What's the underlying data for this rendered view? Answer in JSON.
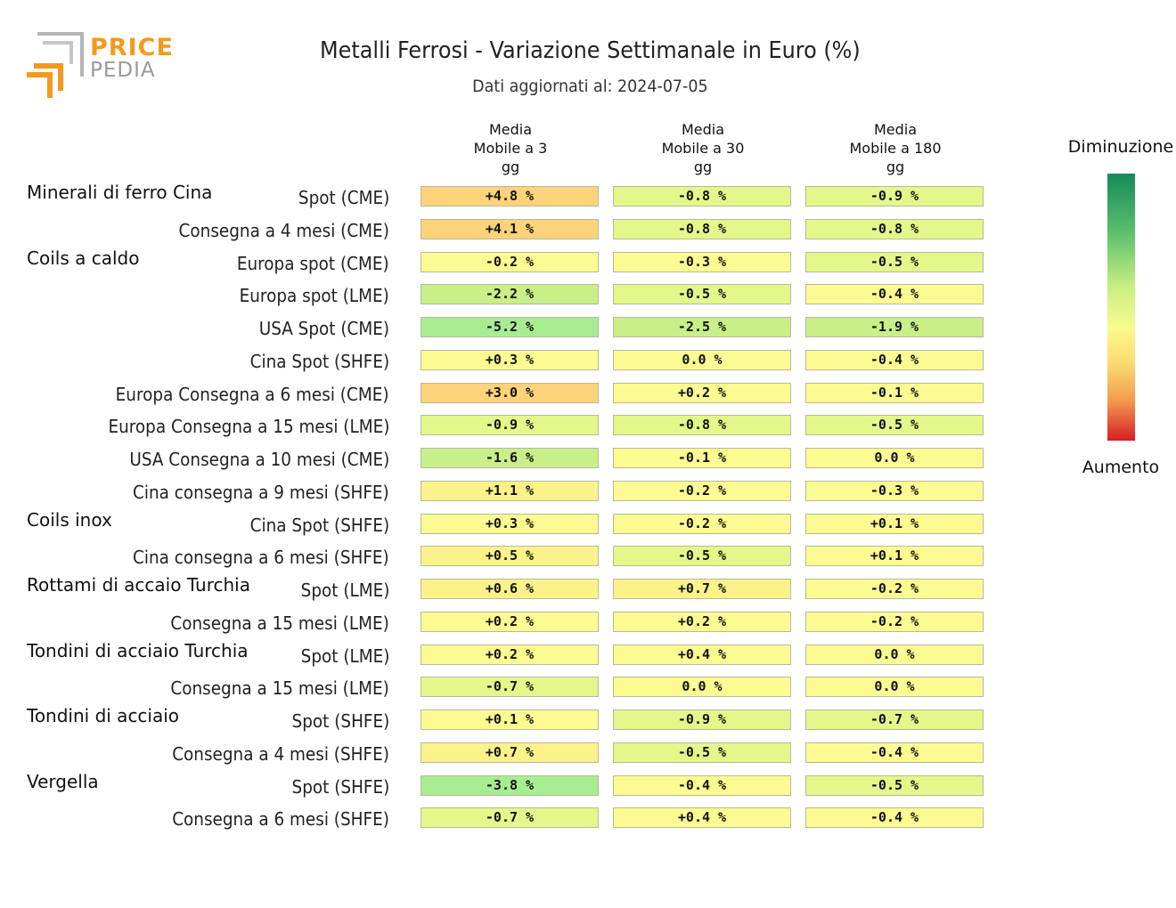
{
  "logo": {
    "line1": "PRICE",
    "line2": "PEDIA"
  },
  "title": "Metalli Ferrosi - Variazione Settimanale in Euro (%)",
  "subtitle": "Dati aggiornati al: 2024-07-05",
  "legend": {
    "top_label": "Diminuzione",
    "bottom_label": "Aumento"
  },
  "colors": {
    "strong_increase": "#fcd27a",
    "mild_increase": "#fbf28a",
    "neutral": "#fbfb92",
    "mild_decrease": "#e3f78a",
    "decrease": "#c8ef88",
    "strong_decrease": "#a8ec92"
  },
  "chart_data": {
    "type": "table",
    "title": "Metalli Ferrosi - Variazione Settimanale in Euro (%)",
    "columns": [
      [
        "Media",
        "Mobile a 3",
        "gg"
      ],
      [
        "Media",
        "Mobile a 30",
        "gg"
      ],
      [
        "Media",
        "Mobile a 180",
        "gg"
      ]
    ],
    "rows": [
      {
        "group": "Minerali di ferro Cina",
        "label": "Spot (CME)",
        "values": [
          "+4.8 %",
          "-0.8 %",
          "-0.9 %"
        ],
        "nums": [
          4.8,
          -0.8,
          -0.9
        ]
      },
      {
        "group": "",
        "label": "Consegna a 4 mesi (CME)",
        "values": [
          "+4.1 %",
          "-0.8 %",
          "-0.8 %"
        ],
        "nums": [
          4.1,
          -0.8,
          -0.8
        ]
      },
      {
        "group": "Coils a caldo",
        "label": "Europa spot (CME)",
        "values": [
          "-0.2 %",
          "-0.3 %",
          "-0.5 %"
        ],
        "nums": [
          -0.2,
          -0.3,
          -0.5
        ]
      },
      {
        "group": "",
        "label": "Europa spot (LME)",
        "values": [
          "-2.2 %",
          "-0.5 %",
          "-0.4 %"
        ],
        "nums": [
          -2.2,
          -0.5,
          -0.4
        ]
      },
      {
        "group": "",
        "label": "USA Spot (CME)",
        "values": [
          "-5.2 %",
          "-2.5 %",
          "-1.9 %"
        ],
        "nums": [
          -5.2,
          -2.5,
          -1.9
        ]
      },
      {
        "group": "",
        "label": "Cina Spot (SHFE)",
        "values": [
          "+0.3 %",
          "0.0 %",
          "-0.4 %"
        ],
        "nums": [
          0.3,
          0.0,
          -0.4
        ]
      },
      {
        "group": "",
        "label": "Europa Consegna a 6 mesi (CME)",
        "values": [
          "+3.0 %",
          "+0.2 %",
          "-0.1 %"
        ],
        "nums": [
          3.0,
          0.2,
          -0.1
        ]
      },
      {
        "group": "",
        "label": "Europa Consegna a 15 mesi (LME)",
        "values": [
          "-0.9 %",
          "-0.8 %",
          "-0.5 %"
        ],
        "nums": [
          -0.9,
          -0.8,
          -0.5
        ]
      },
      {
        "group": "",
        "label": "USA Consegna a 10 mesi (CME)",
        "values": [
          "-1.6 %",
          "-0.1 %",
          "0.0 %"
        ],
        "nums": [
          -1.6,
          -0.1,
          0.0
        ]
      },
      {
        "group": "",
        "label": "Cina consegna a 9 mesi (SHFE)",
        "values": [
          "+1.1 %",
          "-0.2 %",
          "-0.3 %"
        ],
        "nums": [
          1.1,
          -0.2,
          -0.3
        ]
      },
      {
        "group": "Coils inox",
        "label": "Cina Spot (SHFE)",
        "values": [
          "+0.3 %",
          "-0.2 %",
          "+0.1 %"
        ],
        "nums": [
          0.3,
          -0.2,
          0.1
        ]
      },
      {
        "group": "",
        "label": "Cina consegna a 6 mesi (SHFE)",
        "values": [
          "+0.5 %",
          "-0.5 %",
          "+0.1 %"
        ],
        "nums": [
          0.5,
          -0.5,
          0.1
        ]
      },
      {
        "group": "Rottami di accaio Turchia",
        "label": "Spot (LME)",
        "values": [
          "+0.6 %",
          "+0.7 %",
          "-0.2 %"
        ],
        "nums": [
          0.6,
          0.7,
          -0.2
        ]
      },
      {
        "group": "",
        "label": "Consegna a 15 mesi (LME)",
        "values": [
          "+0.2 %",
          "+0.2 %",
          "-0.2 %"
        ],
        "nums": [
          0.2,
          0.2,
          -0.2
        ]
      },
      {
        "group": "Tondini di acciaio Turchia",
        "label": "Spot (LME)",
        "values": [
          "+0.2 %",
          "+0.4 %",
          "0.0 %"
        ],
        "nums": [
          0.2,
          0.4,
          0.0
        ]
      },
      {
        "group": "",
        "label": "Consegna a 15 mesi (LME)",
        "values": [
          "-0.7 %",
          "0.0 %",
          "0.0 %"
        ],
        "nums": [
          -0.7,
          0.0,
          0.0
        ]
      },
      {
        "group": "Tondini di acciaio",
        "label": "Spot (SHFE)",
        "values": [
          "+0.1 %",
          "-0.9 %",
          "-0.7 %"
        ],
        "nums": [
          0.1,
          -0.9,
          -0.7
        ]
      },
      {
        "group": "",
        "label": "Consegna a 4 mesi (SHFE)",
        "values": [
          "+0.7 %",
          "-0.5 %",
          "-0.4 %"
        ],
        "nums": [
          0.7,
          -0.5,
          -0.4
        ]
      },
      {
        "group": "Vergella",
        "label": "Spot (SHFE)",
        "values": [
          "-3.8 %",
          "-0.4 %",
          "-0.5 %"
        ],
        "nums": [
          -3.8,
          -0.4,
          -0.5
        ]
      },
      {
        "group": "",
        "label": "Consegna a 6 mesi (SHFE)",
        "values": [
          "-0.7 %",
          "+0.4 %",
          "-0.4 %"
        ],
        "nums": [
          -0.7,
          0.4,
          -0.4
        ]
      }
    ]
  }
}
